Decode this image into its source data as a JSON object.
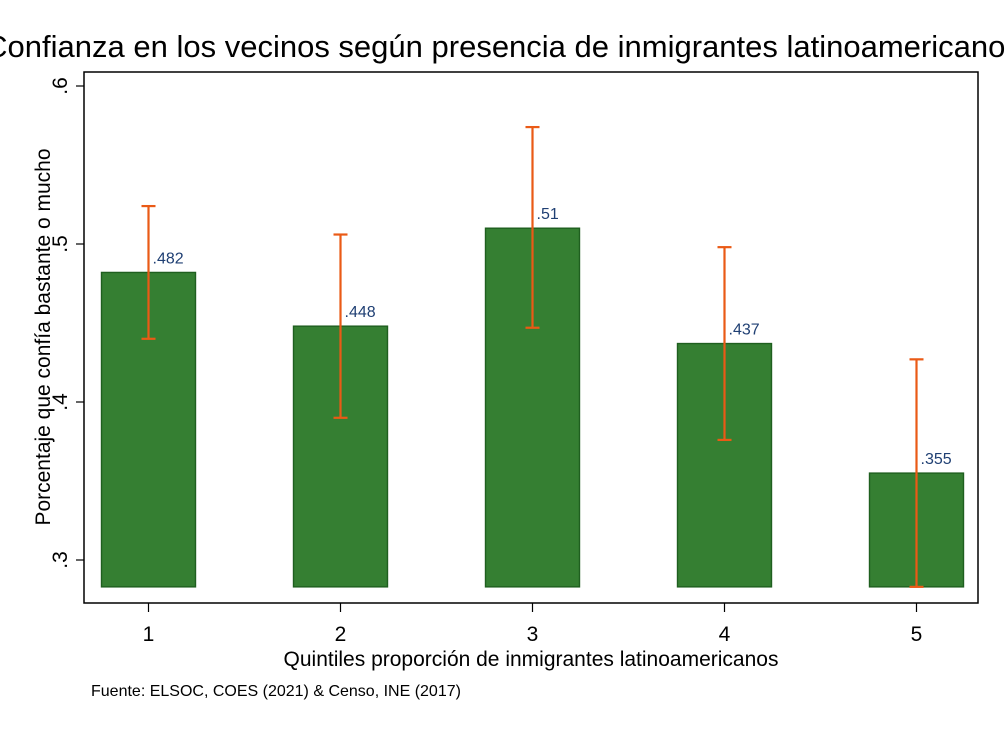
{
  "chart_data": {
    "type": "bar",
    "title": "Confianza en los vecinos según presencia de inmigrantes latinoamericanos",
    "xlabel": "Quintiles proporción de inmigrantes latinoamericanos",
    "ylabel": "Porcentaje que confía bastante o mucho",
    "note": "Fuente: ELSOC, COES (2021) & Censo, INE (2017)",
    "categories": [
      "1",
      "2",
      "3",
      "4",
      "5"
    ],
    "values": [
      0.482,
      0.448,
      0.51,
      0.437,
      0.355
    ],
    "value_labels": [
      ".482",
      ".448",
      ".51",
      ".437",
      ".355"
    ],
    "ci_lower": [
      0.44,
      0.39,
      0.447,
      0.376,
      0.283
    ],
    "ci_upper": [
      0.524,
      0.506,
      0.574,
      0.498,
      0.427
    ],
    "ylim": [
      0.283,
      0.62
    ],
    "yticks": [
      0.3,
      0.4,
      0.5,
      0.6
    ],
    "ytick_labels": [
      ".3",
      ".4",
      ".5",
      ".6"
    ],
    "bar_base": 0.283,
    "grid": false,
    "legend": "none",
    "colors": {
      "bar_fill": "#357f32",
      "bar_edge": "#1f5f1f",
      "error_bar": "#ea5a16",
      "data_label": "#1f3f73"
    }
  }
}
